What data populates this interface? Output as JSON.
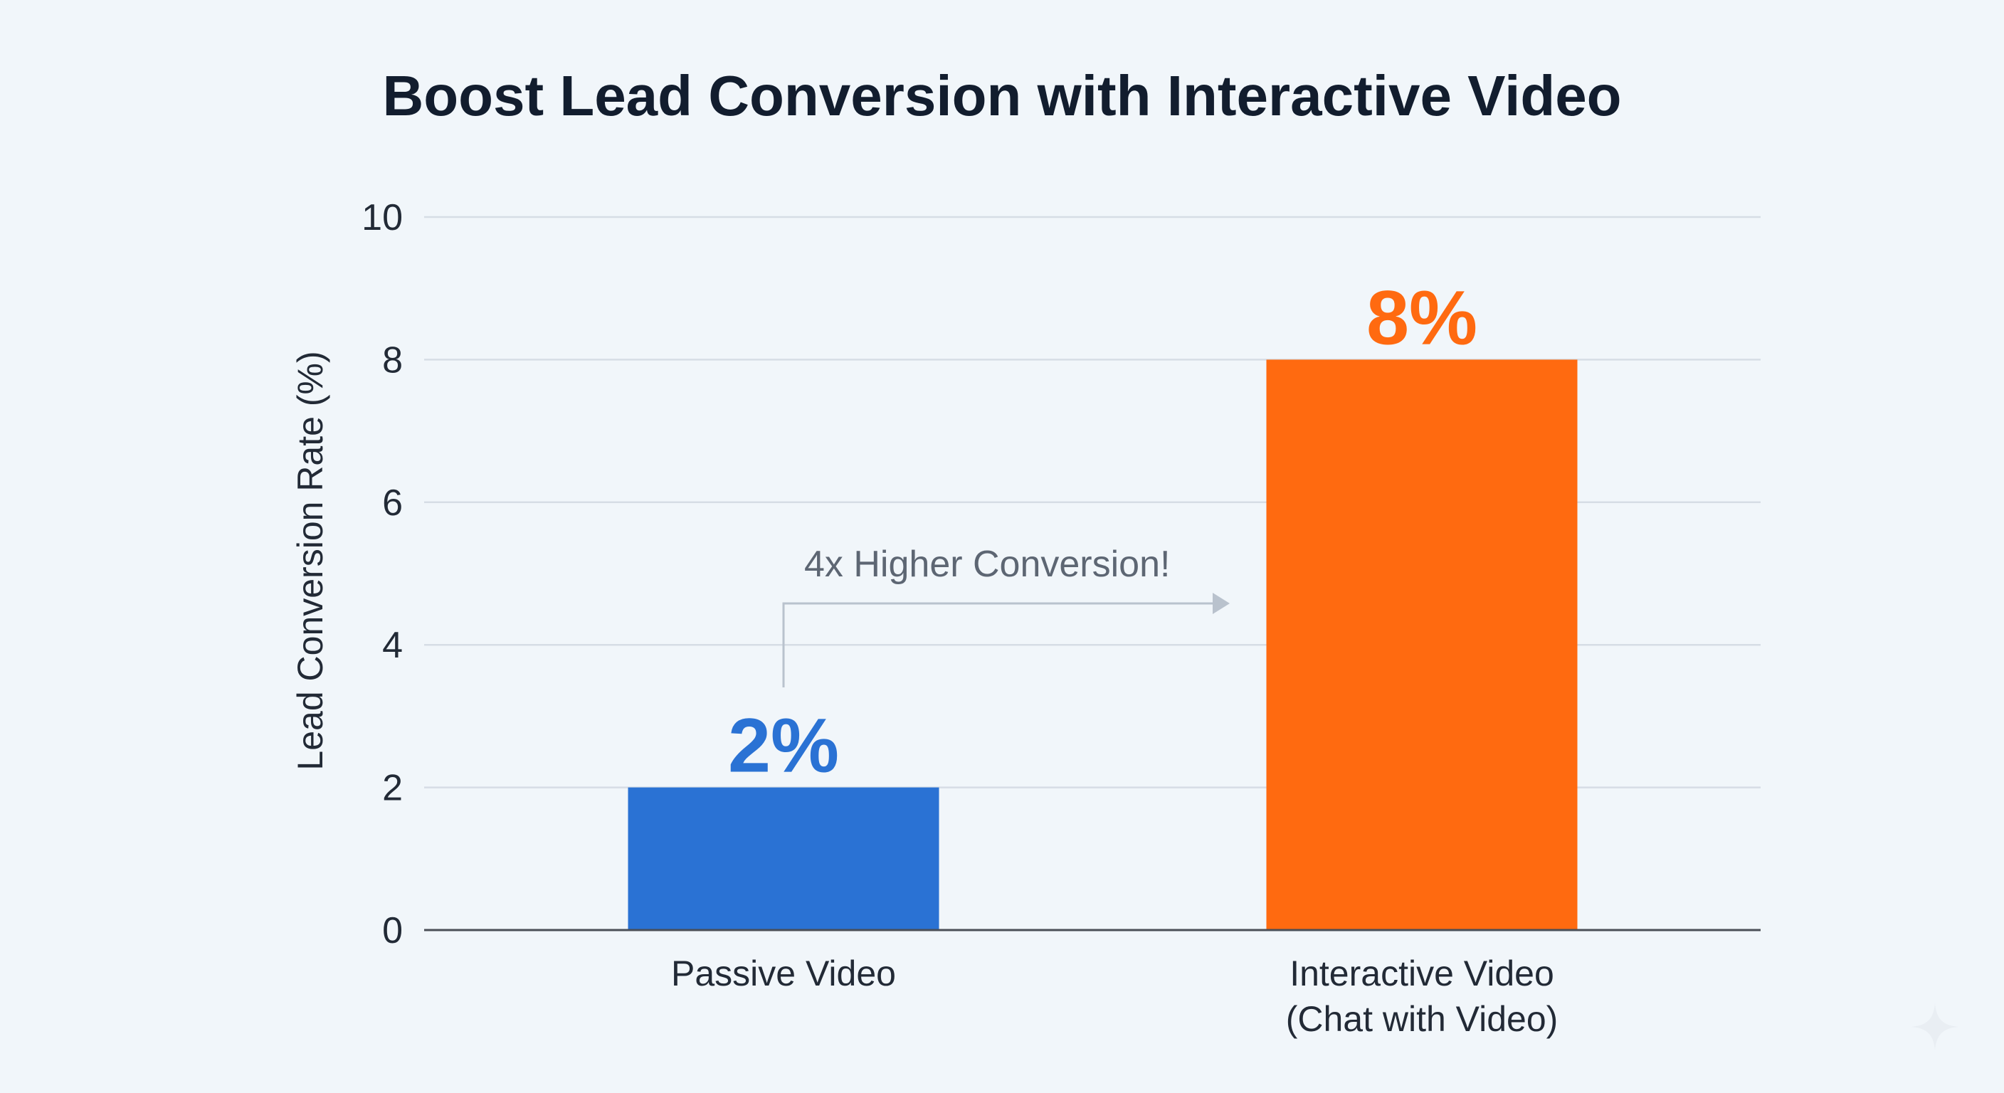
{
  "chart_data": {
    "type": "bar",
    "title": "Boost Lead Conversion with Interactive Video",
    "xlabel": "",
    "ylabel": "Lead Conversion Rate (%)",
    "ylim": [
      0,
      10
    ],
    "yticks": [
      "0",
      "2",
      "4",
      "6",
      "8",
      "10"
    ],
    "categories": [
      [
        "Passive Video"
      ],
      [
        "Interactive Video",
        "(Chat with Video)"
      ]
    ],
    "values": [
      2,
      8
    ],
    "data_labels": [
      "2%",
      "8%"
    ],
    "bar_colors": [
      "#2a72d4",
      "#ff6a10"
    ],
    "annotation": {
      "text": "4x Higher Conversion!",
      "from_category": 0,
      "to_category": 1
    },
    "grid": true,
    "legend": "none"
  },
  "colors": {
    "background": "#f1f6fa",
    "title": "#121d2e",
    "axis_text": "#222a36",
    "gridline": "#d6dde5",
    "baseline": "#4a4f57",
    "annotation_text": "#5d6673",
    "annotation_arrow": "#b9c2cd"
  },
  "decoration": {
    "sparkle_icon": "sparkle-icon"
  }
}
